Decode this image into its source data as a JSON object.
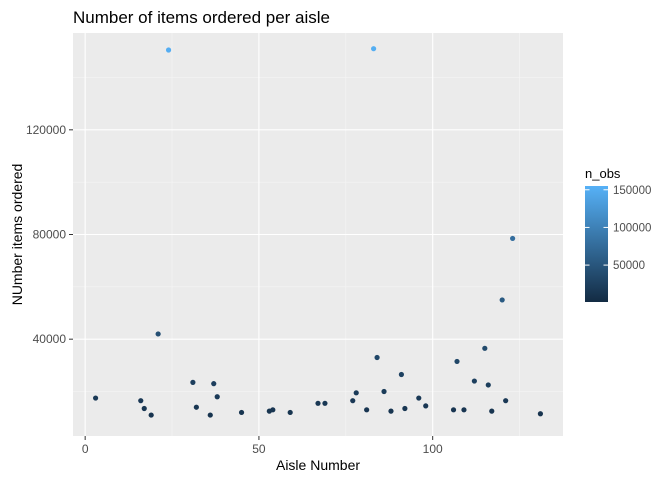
{
  "chart_data": {
    "type": "scatter",
    "title": "Number of items ordered per aisle",
    "xlabel": "Aisle Number",
    "ylabel": "NUmber items ordered",
    "xlim": [
      -3.5,
      137.5
    ],
    "ylim": [
      3000,
      157000
    ],
    "x_ticks": [
      0,
      50,
      100
    ],
    "y_ticks": [
      40000,
      80000,
      120000
    ],
    "x_tick_labels": [
      "0",
      "50",
      "100"
    ],
    "y_tick_labels": [
      "40000",
      "80000",
      "120000"
    ],
    "grid": true,
    "panel_background": "#ebebeb",
    "legend": {
      "title": "n_obs",
      "position": "right",
      "breaks": [
        50000,
        100000,
        150000
      ],
      "break_labels": [
        "50000",
        "100000",
        "150000"
      ],
      "range": [
        1000,
        155000
      ],
      "low_color": "#132b43",
      "high_color": "#56b1f7"
    },
    "points": [
      {
        "x": 3,
        "y": 17500
      },
      {
        "x": 16,
        "y": 16500
      },
      {
        "x": 17,
        "y": 13500
      },
      {
        "x": 19,
        "y": 11000
      },
      {
        "x": 21,
        "y": 42000
      },
      {
        "x": 24,
        "y": 150500
      },
      {
        "x": 31,
        "y": 23500
      },
      {
        "x": 32,
        "y": 14000
      },
      {
        "x": 36,
        "y": 11000
      },
      {
        "x": 37,
        "y": 23000
      },
      {
        "x": 38,
        "y": 18000
      },
      {
        "x": 45,
        "y": 12000
      },
      {
        "x": 53,
        "y": 12500
      },
      {
        "x": 54,
        "y": 13000
      },
      {
        "x": 59,
        "y": 12000
      },
      {
        "x": 67,
        "y": 15500
      },
      {
        "x": 69,
        "y": 15500
      },
      {
        "x": 77,
        "y": 16500
      },
      {
        "x": 78,
        "y": 19500
      },
      {
        "x": 81,
        "y": 13000
      },
      {
        "x": 83,
        "y": 151000
      },
      {
        "x": 84,
        "y": 33000
      },
      {
        "x": 86,
        "y": 20000
      },
      {
        "x": 88,
        "y": 12500
      },
      {
        "x": 91,
        "y": 26500
      },
      {
        "x": 92,
        "y": 13500
      },
      {
        "x": 96,
        "y": 17500
      },
      {
        "x": 98,
        "y": 14500
      },
      {
        "x": 106,
        "y": 13000
      },
      {
        "x": 107,
        "y": 31500
      },
      {
        "x": 109,
        "y": 13000
      },
      {
        "x": 112,
        "y": 24000
      },
      {
        "x": 115,
        "y": 36500
      },
      {
        "x": 116,
        "y": 22500
      },
      {
        "x": 117,
        "y": 12500
      },
      {
        "x": 120,
        "y": 55000
      },
      {
        "x": 121,
        "y": 16500
      },
      {
        "x": 123,
        "y": 78500
      },
      {
        "x": 131,
        "y": 11500
      }
    ]
  }
}
